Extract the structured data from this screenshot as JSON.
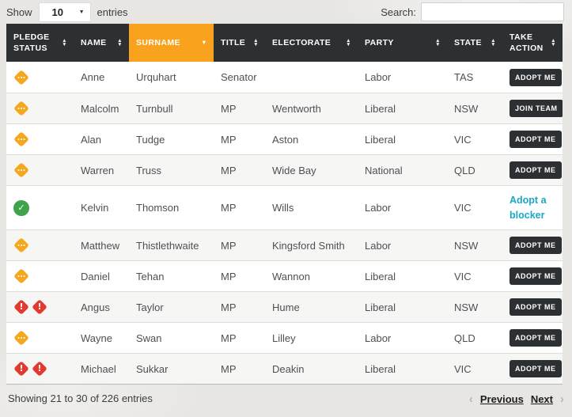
{
  "controls": {
    "show_label": "Show",
    "entries_value": "10",
    "entries_suffix": "entries",
    "search_label": "Search:",
    "search_value": ""
  },
  "table": {
    "columns": [
      {
        "label": "PLEDGE STATUS",
        "sort": "both",
        "active": false
      },
      {
        "label": "NAME",
        "sort": "both",
        "active": false
      },
      {
        "label": "SURNAME",
        "sort": "desc",
        "active": true
      },
      {
        "label": "TITLE",
        "sort": "both",
        "active": false
      },
      {
        "label": "ELECTORATE",
        "sort": "both",
        "active": false
      },
      {
        "label": "PARTY",
        "sort": "both",
        "active": false
      },
      {
        "label": "STATE",
        "sort": "both",
        "active": false
      },
      {
        "label": "TAKE ACTION",
        "sort": "both",
        "active": false
      }
    ],
    "rows": [
      {
        "status": "pending",
        "name": "Anne",
        "surname": "Urquhart",
        "title": "Senator",
        "electorate": "",
        "party": "Labor",
        "state": "TAS",
        "action": {
          "type": "button",
          "label": "ADOPT ME"
        }
      },
      {
        "status": "pending",
        "name": "Malcolm",
        "surname": "Turnbull",
        "title": "MP",
        "electorate": "Wentworth",
        "party": "Liberal",
        "state": "NSW",
        "action": {
          "type": "button",
          "label": "JOIN TEAM"
        }
      },
      {
        "status": "pending",
        "name": "Alan",
        "surname": "Tudge",
        "title": "MP",
        "electorate": "Aston",
        "party": "Liberal",
        "state": "VIC",
        "action": {
          "type": "button",
          "label": "ADOPT ME"
        }
      },
      {
        "status": "pending",
        "name": "Warren",
        "surname": "Truss",
        "title": "MP",
        "electorate": "Wide Bay",
        "party": "National",
        "state": "QLD",
        "action": {
          "type": "button",
          "label": "ADOPT ME"
        }
      },
      {
        "status": "pledged",
        "name": "Kelvin",
        "surname": "Thomson",
        "title": "MP",
        "electorate": "Wills",
        "party": "Labor",
        "state": "VIC",
        "action": {
          "type": "link",
          "label": "Adopt a blocker"
        }
      },
      {
        "status": "pending",
        "name": "Matthew",
        "surname": "Thistlethwaite",
        "title": "MP",
        "electorate": "Kingsford Smith",
        "party": "Labor",
        "state": "NSW",
        "action": {
          "type": "button",
          "label": "ADOPT ME"
        }
      },
      {
        "status": "pending",
        "name": "Daniel",
        "surname": "Tehan",
        "title": "MP",
        "electorate": "Wannon",
        "party": "Liberal",
        "state": "VIC",
        "action": {
          "type": "button",
          "label": "ADOPT ME"
        }
      },
      {
        "status": "blocker",
        "name": "Angus",
        "surname": "Taylor",
        "title": "MP",
        "electorate": "Hume",
        "party": "Liberal",
        "state": "NSW",
        "action": {
          "type": "button",
          "label": "ADOPT ME"
        }
      },
      {
        "status": "pending",
        "name": "Wayne",
        "surname": "Swan",
        "title": "MP",
        "electorate": "Lilley",
        "party": "Labor",
        "state": "QLD",
        "action": {
          "type": "button",
          "label": "ADOPT ME"
        }
      },
      {
        "status": "blocker",
        "name": "Michael",
        "surname": "Sukkar",
        "title": "MP",
        "electorate": "Deakin",
        "party": "Liberal",
        "state": "VIC",
        "action": {
          "type": "button",
          "label": "ADOPT ME"
        }
      }
    ]
  },
  "footer": {
    "info": "Showing 21 to 30 of 226 entries",
    "previous_label": "Previous",
    "next_label": "Next"
  },
  "colors": {
    "header_bg": "#2d3033",
    "accent_orange": "#f9a21d",
    "status_orange": "#f5a81e",
    "status_green": "#3ea34b",
    "status_red": "#e13a30",
    "link_cyan": "#1ba8c5"
  },
  "icons": {
    "sort_both": "up-down-arrows",
    "sort_desc": "down-arrow",
    "pending": "orange-diamond-ellipsis",
    "pledged": "green-circle-check",
    "blocker": "double-red-diamond-exclamation"
  }
}
